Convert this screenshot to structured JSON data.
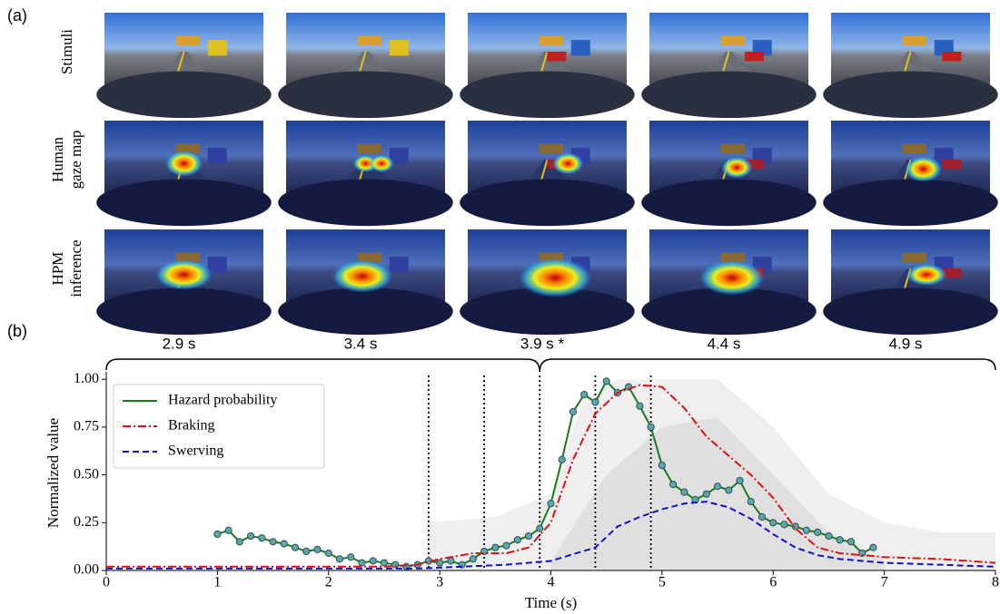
{
  "figure": {
    "panel_a": "(a)",
    "panel_b": "(b)",
    "row_labels": [
      [
        "Stimuli"
      ],
      [
        "Human",
        "gaze map"
      ],
      [
        "HPM",
        "inference"
      ]
    ],
    "time_labels": [
      "2.9 s",
      "3.4 s",
      "3.9 s *",
      "4.4 s",
      "4.9 s"
    ]
  },
  "chart_data": {
    "type": "line",
    "xlabel": "Time (s)",
    "ylabel": "Normalized value",
    "xlim": [
      0,
      8
    ],
    "xticks": [
      0,
      1,
      2,
      3,
      4,
      5,
      6,
      7,
      8
    ],
    "ylim": [
      0,
      1.02
    ],
    "yticks": [
      {
        "value": 0,
        "label": "0.00"
      },
      {
        "value": 0.25,
        "label": "0.25"
      },
      {
        "value": 0.5,
        "label": "0.50"
      },
      {
        "value": 0.75,
        "label": "0.75"
      },
      {
        "value": 1,
        "label": "1.00"
      }
    ],
    "legend": "upper left",
    "vlines": [
      2.9,
      3.4,
      3.9,
      4.4,
      4.9
    ],
    "bands": [
      {
        "color": "#e8e8e8",
        "x": [
          2.9,
          3.5,
          4.0,
          4.3,
          4.6,
          5.0,
          5.5,
          6.0,
          6.5,
          7.0,
          7.5,
          8.0
        ],
        "lower": [
          0,
          0,
          0,
          0,
          0,
          0,
          0,
          0,
          0,
          0,
          0,
          0
        ],
        "upper": [
          0.25,
          0.28,
          0.4,
          0.9,
          1.0,
          1.0,
          1.0,
          0.75,
          0.4,
          0.25,
          0.2,
          0.2
        ]
      },
      {
        "color": "#dadada",
        "x": [
          4.0,
          4.5,
          5.0,
          5.5,
          6.0,
          6.5,
          7.0
        ],
        "lower": [
          0,
          0,
          0,
          0,
          0,
          0,
          0
        ],
        "upper": [
          0.05,
          0.5,
          0.75,
          0.8,
          0.5,
          0.2,
          0.05
        ]
      }
    ],
    "series": [
      {
        "name": "Hazard probability",
        "color": "#1a7a1a",
        "style": "solid",
        "markers": true,
        "x": [
          1.0,
          1.1,
          1.2,
          1.3,
          1.4,
          1.5,
          1.6,
          1.7,
          1.8,
          1.9,
          2.0,
          2.1,
          2.2,
          2.3,
          2.4,
          2.5,
          2.6,
          2.7,
          2.8,
          2.9,
          3.0,
          3.1,
          3.2,
          3.3,
          3.4,
          3.5,
          3.6,
          3.7,
          3.8,
          3.9,
          4.0,
          4.1,
          4.2,
          4.3,
          4.4,
          4.5,
          4.6,
          4.7,
          4.8,
          4.9,
          5.0,
          5.1,
          5.2,
          5.3,
          5.4,
          5.5,
          5.6,
          5.7,
          5.8,
          5.9,
          6.0,
          6.1,
          6.2,
          6.3,
          6.4,
          6.5,
          6.6,
          6.7,
          6.8,
          6.9
        ],
        "values": [
          0.19,
          0.21,
          0.15,
          0.18,
          0.17,
          0.15,
          0.14,
          0.12,
          0.1,
          0.11,
          0.09,
          0.06,
          0.07,
          0.04,
          0.05,
          0.04,
          0.03,
          0.02,
          0.03,
          0.05,
          0.04,
          0.05,
          0.03,
          0.06,
          0.1,
          0.12,
          0.13,
          0.16,
          0.18,
          0.22,
          0.35,
          0.58,
          0.83,
          0.92,
          0.88,
          0.99,
          0.93,
          0.96,
          0.86,
          0.75,
          0.55,
          0.45,
          0.41,
          0.37,
          0.4,
          0.44,
          0.42,
          0.47,
          0.36,
          0.28,
          0.25,
          0.24,
          0.23,
          0.21,
          0.2,
          0.18,
          0.16,
          0.15,
          0.09,
          0.12
        ]
      },
      {
        "name": "Braking",
        "color": "#dd1111",
        "style": "dashdot",
        "markers": false,
        "x": [
          0,
          2.5,
          2.8,
          3.0,
          3.3,
          3.6,
          3.8,
          4.0,
          4.2,
          4.4,
          4.6,
          4.8,
          5.0,
          5.2,
          5.4,
          5.6,
          5.8,
          6.0,
          6.2,
          6.4,
          6.6,
          7.0,
          7.5,
          8.0
        ],
        "values": [
          0.02,
          0.02,
          0.03,
          0.06,
          0.09,
          0.09,
          0.12,
          0.25,
          0.58,
          0.82,
          0.93,
          0.97,
          0.96,
          0.85,
          0.7,
          0.6,
          0.5,
          0.38,
          0.22,
          0.12,
          0.09,
          0.07,
          0.06,
          0.04
        ]
      },
      {
        "name": "Swerving",
        "color": "#1111cc",
        "style": "dashed",
        "markers": false,
        "x": [
          0,
          2.8,
          3.2,
          3.6,
          4.0,
          4.4,
          4.6,
          4.8,
          5.0,
          5.2,
          5.4,
          5.6,
          5.8,
          6.0,
          6.2,
          6.4,
          6.6,
          7.0,
          7.5,
          8.0
        ],
        "values": [
          0.01,
          0.01,
          0.02,
          0.03,
          0.05,
          0.12,
          0.23,
          0.28,
          0.32,
          0.35,
          0.36,
          0.33,
          0.27,
          0.19,
          0.12,
          0.08,
          0.06,
          0.04,
          0.03,
          0.02
        ]
      }
    ]
  }
}
